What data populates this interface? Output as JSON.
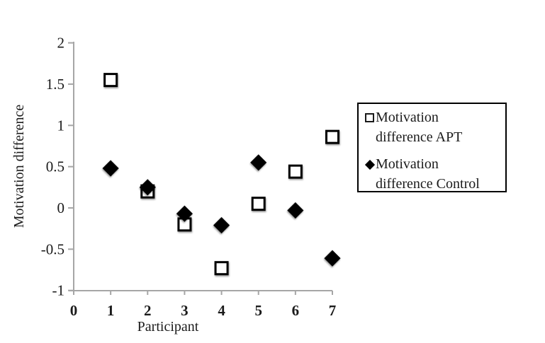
{
  "chart_data": {
    "type": "scatter",
    "title": "",
    "xlabel": "Participant",
    "ylabel": "Motivation difference",
    "x": [
      1,
      2,
      3,
      4,
      5,
      6,
      7
    ],
    "series": [
      {
        "name": "Motivation difference APT",
        "marker": "open-square",
        "fill": "#ffffff",
        "stroke": "#000000",
        "values": [
          1.55,
          0.2,
          -0.2,
          -0.73,
          0.05,
          0.44,
          0.86
        ]
      },
      {
        "name": "Motivation difference Control",
        "marker": "filled-diamond",
        "fill": "#000000",
        "stroke": "#000000",
        "values": [
          0.48,
          0.25,
          -0.07,
          -0.21,
          0.55,
          -0.03,
          -0.61
        ]
      }
    ],
    "xlim": [
      0,
      7
    ],
    "ylim": [
      -1,
      2
    ],
    "x_ticks": [
      0,
      1,
      2,
      3,
      4,
      5,
      6,
      7
    ],
    "y_ticks": [
      2,
      1.5,
      1,
      0.5,
      0,
      -0.5,
      -1
    ],
    "grid": false,
    "legend_position": "right",
    "colors": {
      "axis": "#a6a6a6",
      "text": "#1b1b1b",
      "marker": "#000000",
      "background": "#ffffff"
    }
  }
}
